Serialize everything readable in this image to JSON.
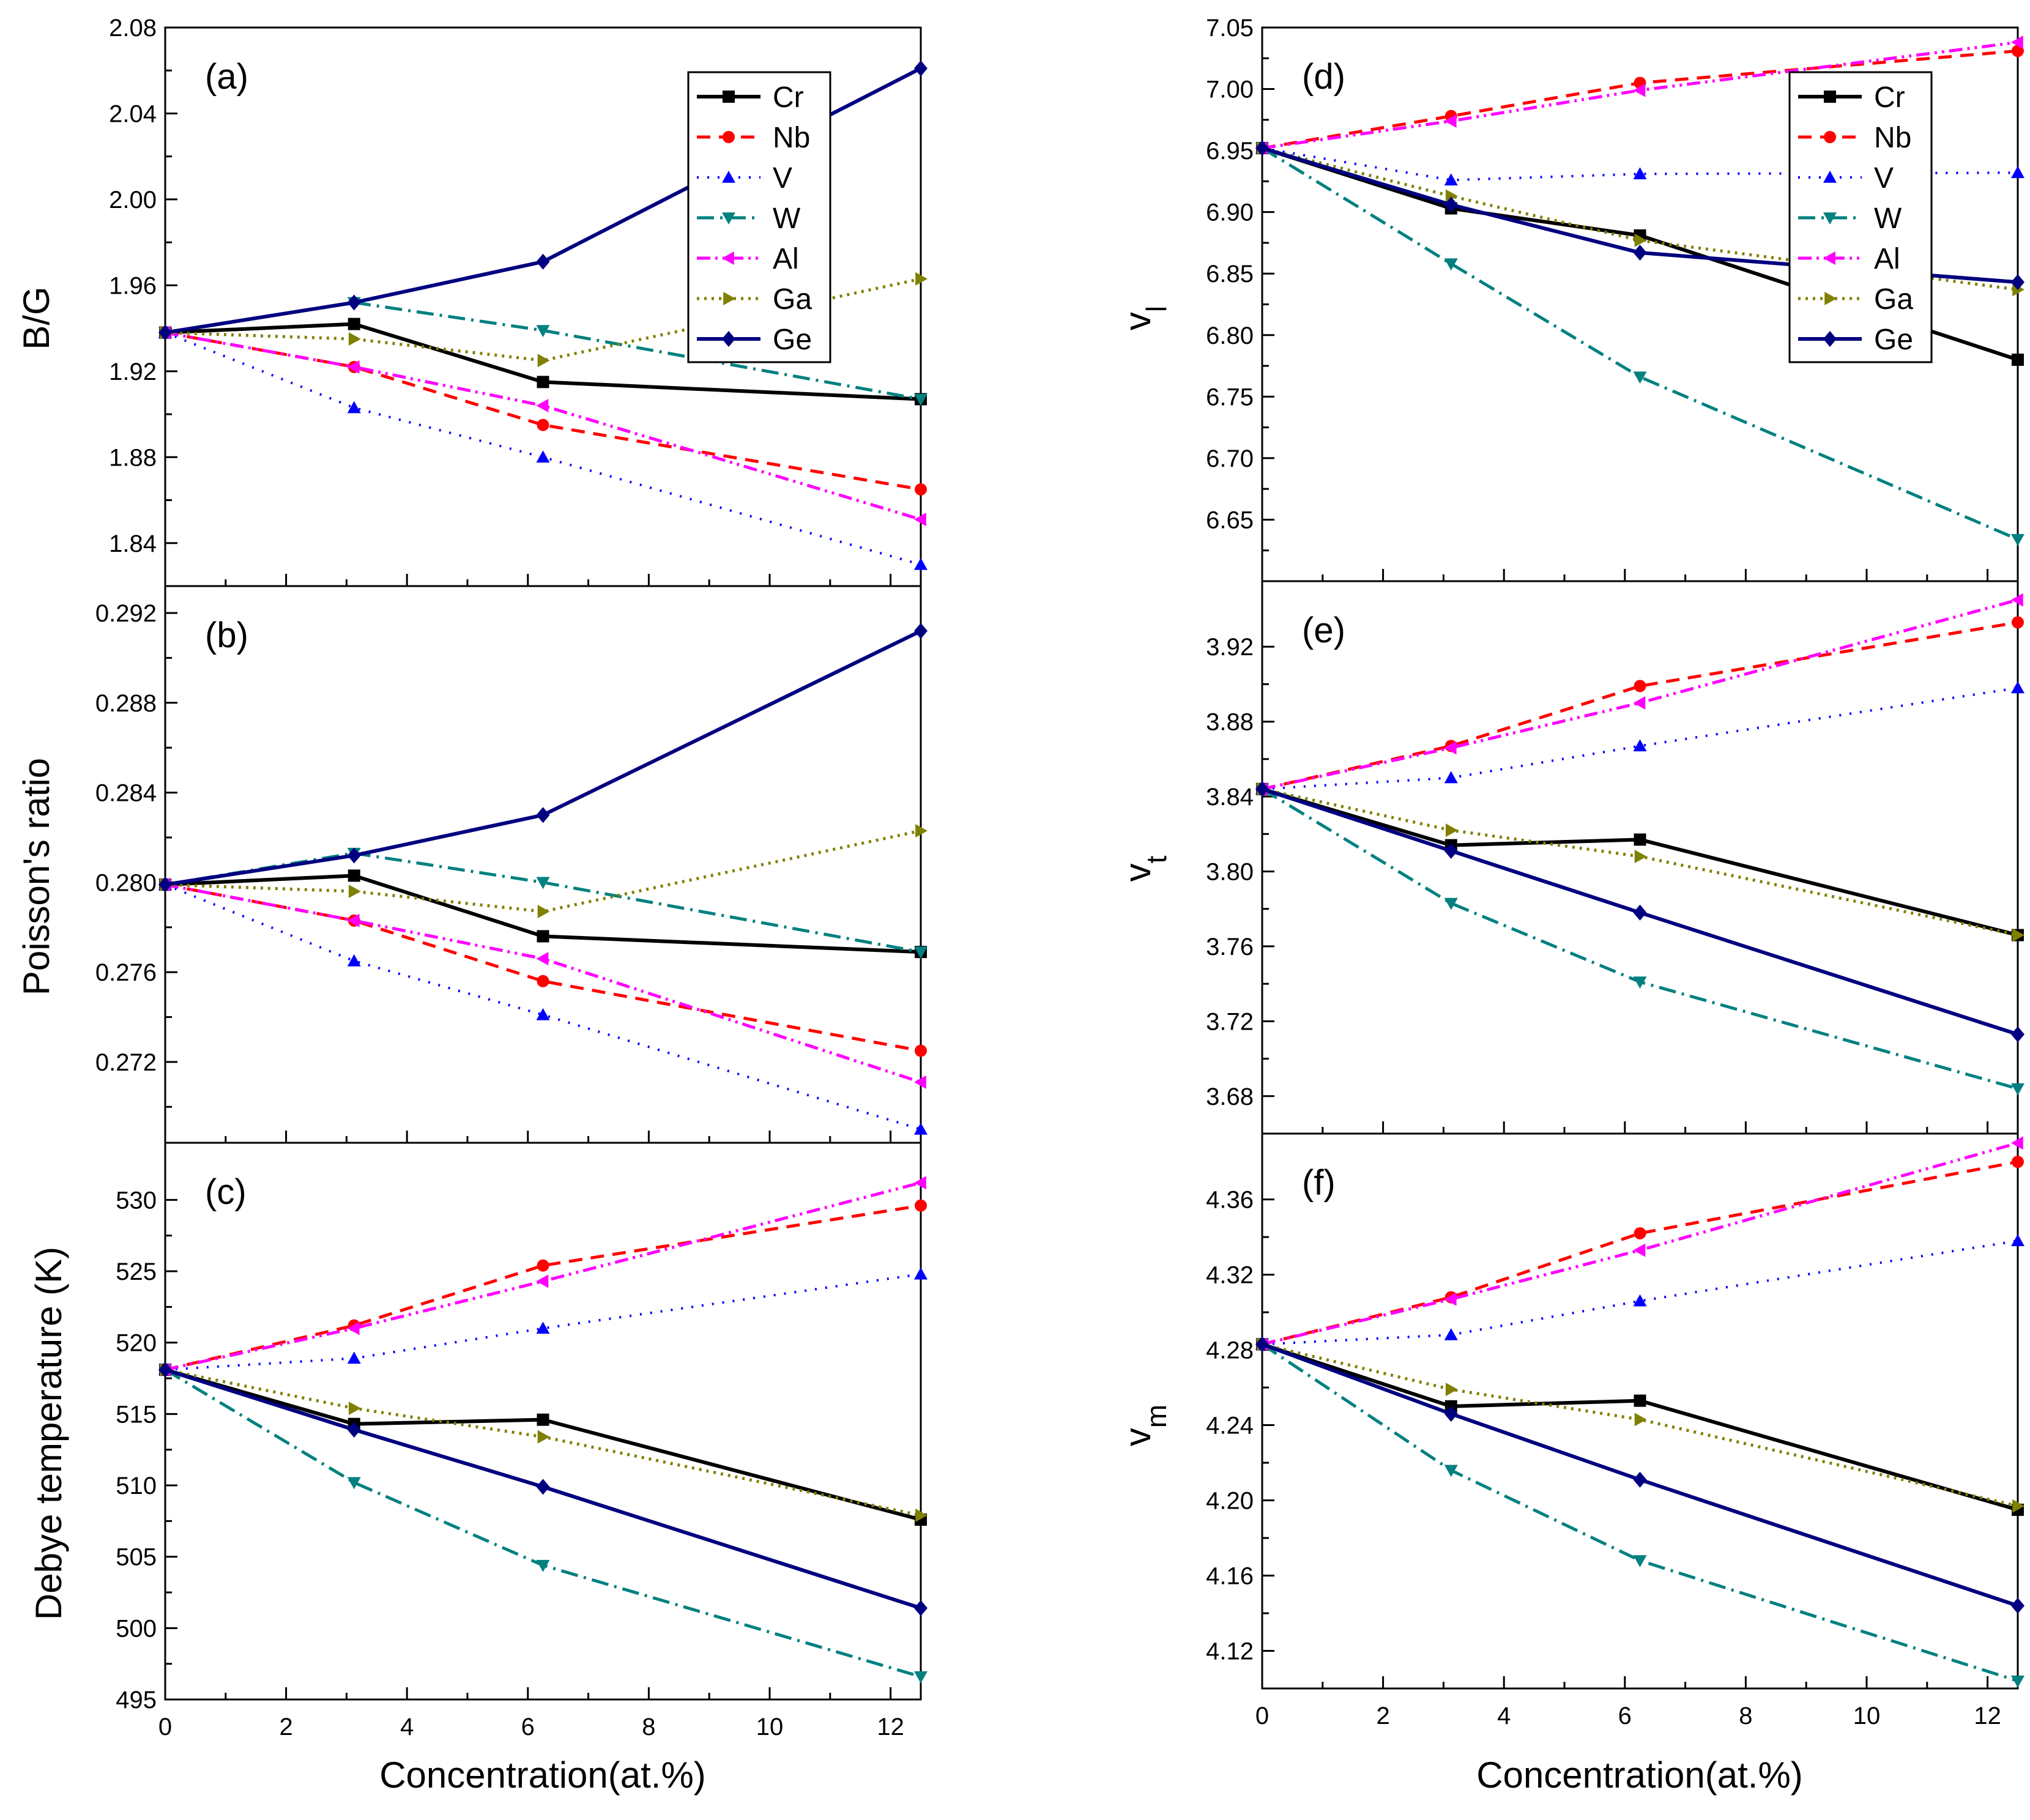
{
  "colors": {
    "Cr": "#000000",
    "Nb": "#ff0000",
    "V": "#0000ff",
    "W": "#008080",
    "Al": "#ff00ff",
    "Ga": "#808000",
    "Ge": "#000080"
  },
  "xlabel": "Concentration(at.%)",
  "chart_data": [
    {
      "id": "a",
      "label": "(a)",
      "type": "line",
      "ylabel": "B/G",
      "ylim": [
        1.82,
        2.08
      ],
      "yticks": [
        "1.84",
        "1.88",
        "1.92",
        "1.96",
        "2.00",
        "2.04",
        "2.08"
      ],
      "xlim": [
        0,
        12.5
      ],
      "xticks": [
        "0",
        "2",
        "4",
        "6",
        "8",
        "10",
        "12"
      ],
      "legend": true,
      "x": [
        0,
        3.125,
        6.25,
        12.5
      ],
      "series": [
        {
          "name": "Cr",
          "values": [
            1.938,
            1.942,
            1.915,
            1.907
          ]
        },
        {
          "name": "Nb",
          "values": [
            1.938,
            1.922,
            1.895,
            1.865
          ]
        },
        {
          "name": "V",
          "values": [
            1.938,
            1.903,
            1.88,
            1.83
          ]
        },
        {
          "name": "W",
          "values": [
            1.938,
            1.952,
            1.939,
            1.907
          ]
        },
        {
          "name": "Al",
          "values": [
            1.938,
            1.922,
            1.904,
            1.851
          ]
        },
        {
          "name": "Ga",
          "values": [
            1.938,
            1.935,
            1.925,
            1.963
          ]
        },
        {
          "name": "Ge",
          "values": [
            1.938,
            1.952,
            1.971,
            2.061
          ]
        }
      ]
    },
    {
      "id": "b",
      "label": "(b)",
      "type": "line",
      "ylabel": "Poisson's ratio",
      "ylim": [
        0.2684,
        0.2932
      ],
      "yticks": [
        "0.272",
        "0.276",
        "0.280",
        "0.284",
        "0.288",
        "0.292"
      ],
      "xlim": [
        0,
        12.5
      ],
      "xticks": [
        "0",
        "2",
        "4",
        "6",
        "8",
        "10",
        "12"
      ],
      "legend": false,
      "x": [
        0,
        3.125,
        6.25,
        12.5
      ],
      "series": [
        {
          "name": "Cr",
          "values": [
            0.2799,
            0.2803,
            0.2776,
            0.2769
          ]
        },
        {
          "name": "Nb",
          "values": [
            0.2799,
            0.2783,
            0.2756,
            0.2725
          ]
        },
        {
          "name": "V",
          "values": [
            0.2799,
            0.2765,
            0.2741,
            0.269
          ]
        },
        {
          "name": "W",
          "values": [
            0.2799,
            0.2813,
            0.28,
            0.2769
          ]
        },
        {
          "name": "Al",
          "values": [
            0.2799,
            0.2783,
            0.2766,
            0.2711
          ]
        },
        {
          "name": "Ga",
          "values": [
            0.2799,
            0.2796,
            0.2787,
            0.2823
          ]
        },
        {
          "name": "Ge",
          "values": [
            0.2799,
            0.2812,
            0.283,
            0.2912
          ]
        }
      ]
    },
    {
      "id": "c",
      "label": "(c)",
      "type": "line",
      "ylabel": "Debye temperature (K)",
      "ylim": [
        495,
        534
      ],
      "yticks": [
        "495",
        "500",
        "505",
        "510",
        "515",
        "520",
        "525",
        "530"
      ],
      "xlim": [
        0,
        12.5
      ],
      "xticks": [
        "0",
        "2",
        "4",
        "6",
        "8",
        "10",
        "12"
      ],
      "legend": false,
      "x": [
        0,
        3.125,
        6.25,
        12.5
      ],
      "series": [
        {
          "name": "Cr",
          "values": [
            518.1,
            514.3,
            514.6,
            507.6
          ]
        },
        {
          "name": "Nb",
          "values": [
            518.1,
            521.2,
            525.4,
            529.6
          ]
        },
        {
          "name": "V",
          "values": [
            518.1,
            518.9,
            521.0,
            524.8
          ]
        },
        {
          "name": "W",
          "values": [
            518.1,
            510.2,
            504.4,
            496.6
          ]
        },
        {
          "name": "Al",
          "values": [
            518.1,
            521.0,
            524.3,
            531.2
          ]
        },
        {
          "name": "Ga",
          "values": [
            518.1,
            515.4,
            513.4,
            507.9
          ]
        },
        {
          "name": "Ge",
          "values": [
            518.1,
            513.9,
            509.9,
            501.4
          ]
        }
      ]
    },
    {
      "id": "d",
      "label": "(d)",
      "type": "line",
      "ylabel": "v",
      "ylabel_sub": "l",
      "ylim": [
        6.6,
        7.05
      ],
      "yticks": [
        "6.65",
        "6.70",
        "6.75",
        "6.80",
        "6.85",
        "6.90",
        "6.95",
        "7.00",
        "7.05"
      ],
      "xlim": [
        0,
        12.5
      ],
      "xticks": [
        "0",
        "2",
        "4",
        "6",
        "8",
        "10",
        "12"
      ],
      "legend": true,
      "x": [
        0,
        3.125,
        6.25,
        12.5
      ],
      "series": [
        {
          "name": "Cr",
          "values": [
            6.952,
            6.903,
            6.881,
            6.78
          ]
        },
        {
          "name": "Nb",
          "values": [
            6.952,
            6.978,
            7.005,
            7.031
          ]
        },
        {
          "name": "V",
          "values": [
            6.952,
            6.926,
            6.931,
            6.932
          ]
        },
        {
          "name": "W",
          "values": [
            6.952,
            6.858,
            6.766,
            6.634
          ]
        },
        {
          "name": "Al",
          "values": [
            6.952,
            6.974,
            6.999,
            7.038
          ]
        },
        {
          "name": "Ga",
          "values": [
            6.952,
            6.913,
            6.877,
            6.837
          ]
        },
        {
          "name": "Ge",
          "values": [
            6.952,
            6.906,
            6.867,
            6.843
          ]
        }
      ]
    },
    {
      "id": "e",
      "label": "(e)",
      "type": "line",
      "ylabel": "v",
      "ylabel_sub": "t",
      "ylim": [
        3.66,
        3.955
      ],
      "yticks": [
        "3.68",
        "3.72",
        "3.76",
        "3.80",
        "3.84",
        "3.88",
        "3.92"
      ],
      "xlim": [
        0,
        12.5
      ],
      "xticks": [
        "0",
        "2",
        "4",
        "6",
        "8",
        "10",
        "12"
      ],
      "legend": false,
      "x": [
        0,
        3.125,
        6.25,
        12.5
      ],
      "series": [
        {
          "name": "Cr",
          "values": [
            3.844,
            3.814,
            3.817,
            3.766
          ]
        },
        {
          "name": "Nb",
          "values": [
            3.844,
            3.867,
            3.899,
            3.933
          ]
        },
        {
          "name": "V",
          "values": [
            3.844,
            3.85,
            3.867,
            3.898
          ]
        },
        {
          "name": "W",
          "values": [
            3.844,
            3.783,
            3.741,
            3.684
          ]
        },
        {
          "name": "Al",
          "values": [
            3.844,
            3.866,
            3.89,
            3.945
          ]
        },
        {
          "name": "Ga",
          "values": [
            3.844,
            3.822,
            3.808,
            3.766
          ]
        },
        {
          "name": "Ge",
          "values": [
            3.844,
            3.811,
            3.778,
            3.713
          ]
        }
      ]
    },
    {
      "id": "f",
      "label": "(f)",
      "type": "line",
      "ylabel": "v",
      "ylabel_sub": "m",
      "ylim": [
        4.1,
        4.395
      ],
      "yticks": [
        "4.12",
        "4.16",
        "4.20",
        "4.24",
        "4.28",
        "4.32",
        "4.36"
      ],
      "xlim": [
        0,
        12.5
      ],
      "xticks": [
        "0",
        "2",
        "4",
        "6",
        "8",
        "10",
        "12"
      ],
      "legend": false,
      "x": [
        0,
        3.125,
        6.25,
        12.5
      ],
      "series": [
        {
          "name": "Cr",
          "values": [
            4.283,
            4.25,
            4.253,
            4.195
          ]
        },
        {
          "name": "Nb",
          "values": [
            4.283,
            4.308,
            4.342,
            4.38
          ]
        },
        {
          "name": "V",
          "values": [
            4.283,
            4.288,
            4.306,
            4.338
          ]
        },
        {
          "name": "W",
          "values": [
            4.283,
            4.216,
            4.168,
            4.104
          ]
        },
        {
          "name": "Al",
          "values": [
            4.283,
            4.307,
            4.333,
            4.39
          ]
        },
        {
          "name": "Ga",
          "values": [
            4.283,
            4.259,
            4.243,
            4.197
          ]
        },
        {
          "name": "Ge",
          "values": [
            4.283,
            4.246,
            4.211,
            4.144
          ]
        }
      ]
    }
  ]
}
